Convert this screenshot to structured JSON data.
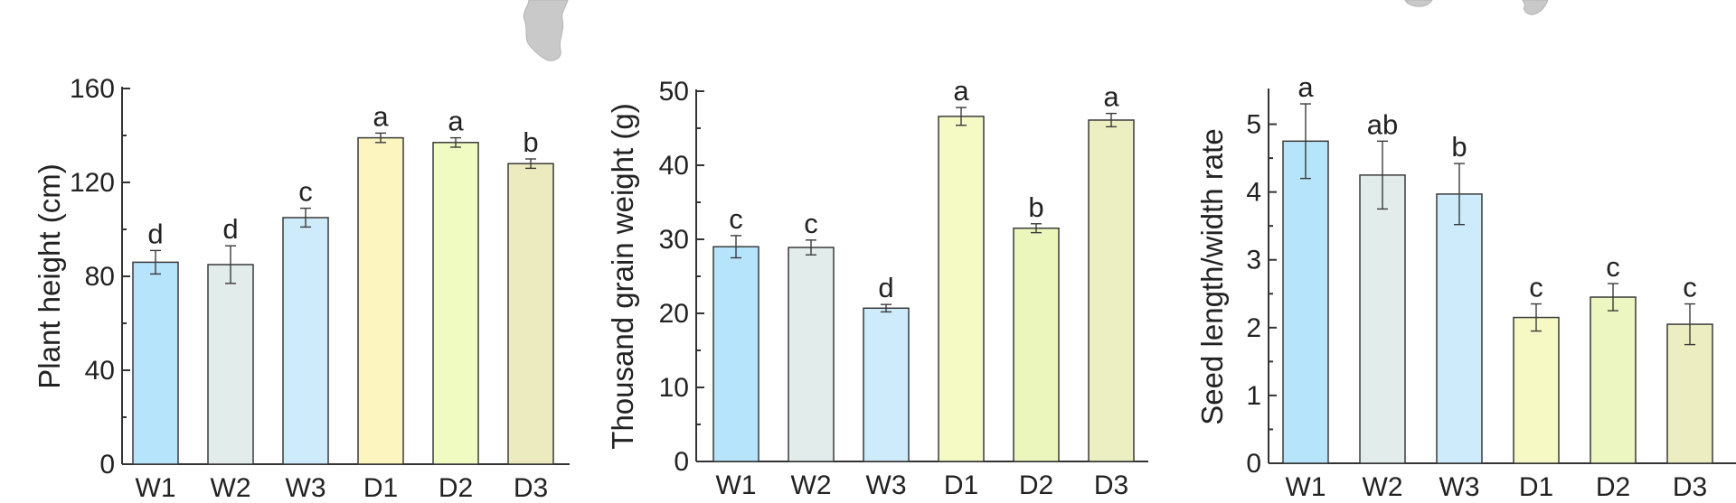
{
  "chart_data": [
    {
      "type": "bar",
      "title": "",
      "xlabel": "",
      "ylabel": "Plant height (cm)",
      "ylim": [
        0,
        160
      ],
      "yticks": [
        0,
        40,
        80,
        120,
        160
      ],
      "categories": [
        "W1",
        "W2",
        "W3",
        "D1",
        "D2",
        "D3"
      ],
      "values": [
        86,
        85,
        105,
        139,
        137,
        128
      ],
      "errors": [
        5,
        8,
        4,
        2,
        2,
        2
      ],
      "significance": [
        "d",
        "d",
        "c",
        "a",
        "a",
        "b"
      ],
      "colors": [
        "#b5e4fb",
        "#e2ecea",
        "#cdebfa",
        "#fdf5c0",
        "#f0fbc2",
        "#ecebbf"
      ]
    },
    {
      "type": "bar",
      "title": "",
      "xlabel": "",
      "ylabel": "Thousand grain weight (g)",
      "ylim": [
        0,
        50
      ],
      "yticks": [
        0,
        10,
        20,
        30,
        40,
        50
      ],
      "categories": [
        "W1",
        "W2",
        "W3",
        "D1",
        "D2",
        "D3"
      ],
      "values": [
        29,
        28.9,
        20.7,
        46.6,
        31.5,
        46.1
      ],
      "errors": [
        1.5,
        1.0,
        0.5,
        1.2,
        0.6,
        0.9
      ],
      "significance": [
        "c",
        "c",
        "d",
        "a",
        "b",
        "a"
      ],
      "colors": [
        "#b5e4fb",
        "#e2ecea",
        "#cdebfa",
        "#f5f9c4",
        "#eaf6bc",
        "#ecefc1"
      ]
    },
    {
      "type": "bar",
      "title": "",
      "xlabel": "",
      "ylabel": "Seed length/width rate",
      "ylim": [
        0,
        5.5
      ],
      "yticks": [
        0,
        1,
        2,
        3,
        4,
        5
      ],
      "categories": [
        "W1",
        "W2",
        "W3",
        "D1",
        "D2",
        "D3"
      ],
      "values": [
        4.75,
        4.25,
        3.97,
        2.15,
        2.45,
        2.05
      ],
      "errors": [
        0.55,
        0.5,
        0.45,
        0.2,
        0.2,
        0.3
      ],
      "significance": [
        "a",
        "ab",
        "b",
        "c",
        "c",
        "c"
      ],
      "colors": [
        "#b5e4fb",
        "#e2ecea",
        "#cdebfa",
        "#f6f9c3",
        "#ecf6c0",
        "#ecedc0"
      ]
    }
  ]
}
